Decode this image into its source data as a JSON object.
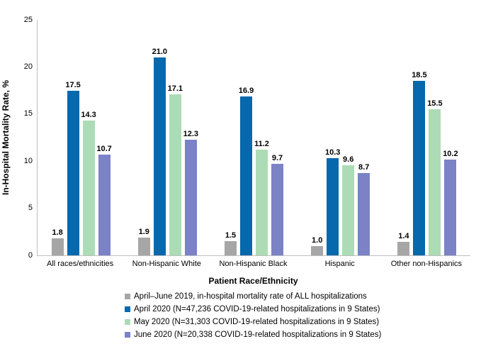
{
  "chart_data": {
    "type": "bar",
    "title": "",
    "xlabel": "Patient Race/Ethnicity",
    "ylabel": "In-Hospital Mortality Rate, %",
    "ylim": [
      0,
      25
    ],
    "yticks": [
      0,
      5,
      10,
      15,
      20,
      25
    ],
    "grid": false,
    "legend_position": "bottom",
    "value_label_format": "one-decimal",
    "categories": [
      "All races/ethnicities",
      "Non-Hispanic White",
      "Non-Hispanic Black",
      "Hispanic",
      "Other non-Hispanics"
    ],
    "series": [
      {
        "name": "April–June 2019, in-hospital mortality rate of ALL hospitalizations",
        "color": "#A6A6A6",
        "values": [
          1.8,
          1.9,
          1.5,
          1.0,
          1.4
        ]
      },
      {
        "name": "April 2020 (N=47,236 COVID-19-related hospitalizations in 9 States)",
        "color": "#0668AD",
        "values": [
          17.5,
          21.0,
          16.9,
          10.3,
          18.5
        ]
      },
      {
        "name": "May 2020 (N=31,303 COVID-19-related hospitalizations in 9 States)",
        "color": "#ACDCB5",
        "values": [
          14.3,
          17.1,
          11.2,
          9.6,
          15.5
        ]
      },
      {
        "name": "June 2020 (N=20,338 COVID-19-related hospitalizations in 9 States)",
        "color": "#7B82C6",
        "values": [
          10.7,
          12.3,
          9.7,
          8.7,
          10.2
        ]
      }
    ],
    "colors": {
      "axis_line": "#BFBFBF",
      "text": "#000000",
      "background": "#FFFFFF"
    }
  }
}
